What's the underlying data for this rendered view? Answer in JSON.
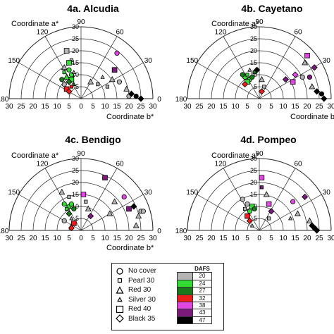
{
  "panels": [
    {
      "title": "4a. Alcudia",
      "a_axis_label": "Coordinate a*",
      "b_axis_label": "Coordinate b*",
      "angle_ticks": [
        "180",
        "150",
        "120",
        "90",
        "60",
        "30",
        "0"
      ],
      "b_ticks": [
        "30",
        "25",
        "20",
        "15",
        "10",
        "5",
        "0",
        "5",
        "10",
        "15",
        "20",
        "25",
        "30"
      ],
      "a_ticks": [
        "30",
        "25",
        "20",
        "15",
        "10",
        "5"
      ]
    },
    {
      "title": "4b. Cayetano",
      "a_axis_label": "Coordinate a*",
      "b_axis_label": "Coordinate b*",
      "angle_ticks": [
        "180",
        "150",
        "120",
        "90",
        "60",
        "30",
        "0"
      ],
      "b_ticks": [
        "30",
        "25",
        "20",
        "15",
        "10",
        "5",
        "0",
        "5",
        "10",
        "15",
        "20",
        "25",
        "30"
      ],
      "a_ticks": [
        "30",
        "25",
        "20",
        "15",
        "10",
        "5"
      ]
    },
    {
      "title": "4c. Bendigo",
      "a_axis_label": "Coordinate a*",
      "b_axis_label": "Coordinate b*",
      "angle_ticks": [
        "180",
        "150",
        "120",
        "90",
        "60",
        "30",
        "0"
      ],
      "b_ticks": [
        "30",
        "25",
        "20",
        "15",
        "10",
        "5",
        "0",
        "5",
        "10",
        "15",
        "20",
        "25",
        "30"
      ],
      "a_ticks": [
        "30",
        "25",
        "20",
        "15",
        "10",
        "5"
      ]
    },
    {
      "title": "4d. Pompeo",
      "a_axis_label": "Coordinate a*",
      "b_axis_label": "Coordinate b*",
      "angle_ticks": [
        "180",
        "150",
        "120",
        "90",
        "60",
        "30",
        "0"
      ],
      "b_ticks": [
        "30",
        "25",
        "20",
        "15",
        "10",
        "5",
        "0",
        "5",
        "10",
        "15",
        "20",
        "25",
        "30"
      ],
      "a_ticks": [
        "30",
        "25",
        "20",
        "15",
        "10",
        "5"
      ]
    }
  ],
  "legend": {
    "treatments": [
      {
        "label": "No cover",
        "marker": "circle"
      },
      {
        "label": "Pearl 30",
        "marker": "small-square"
      },
      {
        "label": "Red 30",
        "marker": "triangle"
      },
      {
        "label": "Silver 30",
        "marker": "small-triangle"
      },
      {
        "label": "Red 40",
        "marker": "square"
      },
      {
        "label": "Black 35",
        "marker": "diamond"
      }
    ],
    "dafs_header": "DAFS",
    "dafs": [
      {
        "value": "20",
        "color": "#b4b4b4"
      },
      {
        "value": "24",
        "color": "#33dd33"
      },
      {
        "value": "27",
        "color": "#1a7a1a"
      },
      {
        "value": "32",
        "color": "#ee1c1c"
      },
      {
        "value": "38",
        "color": "#e046e0"
      },
      {
        "value": "43",
        "color": "#7a1a7a"
      },
      {
        "value": "47",
        "color": "#000000"
      }
    ]
  },
  "chart_data": [
    {
      "type": "scatter",
      "title": "4a. Alcudia",
      "coordinates": "polar hue-angle plot (x: Coordinate b*, y: Coordinate a*)",
      "xlabel": "Coordinate b*",
      "ylabel": "Coordinate a*",
      "xlim": [
        -30,
        30
      ],
      "ylim": [
        0,
        30
      ],
      "grid": true,
      "points": [
        {
          "b": -6,
          "a": 20,
          "marker": "square",
          "dafs": "20"
        },
        {
          "b": -4,
          "a": 16,
          "marker": "small-square",
          "dafs": "20"
        },
        {
          "b": -7,
          "a": 13,
          "marker": "triangle",
          "dafs": "20"
        },
        {
          "b": -5,
          "a": 15,
          "marker": "square",
          "dafs": "24"
        },
        {
          "b": -5,
          "a": 12,
          "marker": "circle",
          "dafs": "24"
        },
        {
          "b": -7,
          "a": 11,
          "marker": "small-square",
          "dafs": "24"
        },
        {
          "b": -4,
          "a": 10,
          "marker": "circle",
          "dafs": "24"
        },
        {
          "b": -6,
          "a": 9,
          "marker": "triangle",
          "dafs": "24"
        },
        {
          "b": -4,
          "a": 8,
          "marker": "square",
          "dafs": "24"
        },
        {
          "b": -8,
          "a": 8,
          "marker": "circle",
          "dafs": "27"
        },
        {
          "b": -5,
          "a": 7,
          "marker": "diamond",
          "dafs": "27"
        },
        {
          "b": -3,
          "a": 6,
          "marker": "small-triangle",
          "dafs": "27"
        },
        {
          "b": -6,
          "a": 4,
          "marker": "square",
          "dafs": "32"
        },
        {
          "b": -4,
          "a": 5,
          "marker": "small-square",
          "dafs": "32"
        },
        {
          "b": -5,
          "a": 3,
          "marker": "diamond",
          "dafs": "32"
        },
        {
          "b": -7,
          "a": 6,
          "marker": "circle",
          "dafs": "20"
        },
        {
          "b": -3,
          "a": 11,
          "marker": "small-triangle",
          "dafs": "20"
        },
        {
          "b": 4,
          "a": 7,
          "marker": "triangle",
          "dafs": "20"
        },
        {
          "b": 7,
          "a": 6,
          "marker": "small-square",
          "dafs": "20"
        },
        {
          "b": 9,
          "a": 9,
          "marker": "small-triangle",
          "dafs": "20"
        },
        {
          "b": 11,
          "a": 5,
          "marker": "small-square",
          "dafs": "20"
        },
        {
          "b": 13,
          "a": 8,
          "marker": "triangle",
          "dafs": "20"
        },
        {
          "b": 14,
          "a": 12,
          "marker": "square",
          "dafs": "43"
        },
        {
          "b": 15,
          "a": 19,
          "marker": "circle",
          "dafs": "38"
        },
        {
          "b": 16,
          "a": 7,
          "marker": "circle",
          "dafs": "20"
        },
        {
          "b": 19,
          "a": 4,
          "marker": "triangle",
          "dafs": "20"
        },
        {
          "b": 20,
          "a": 1,
          "marker": "circle",
          "dafs": "20"
        },
        {
          "b": 21,
          "a": 2,
          "marker": "diamond",
          "dafs": "47"
        },
        {
          "b": 23,
          "a": 1,
          "marker": "circle",
          "dafs": "47"
        },
        {
          "b": 25,
          "a": 0,
          "marker": "diamond",
          "dafs": "47"
        }
      ]
    },
    {
      "type": "scatter",
      "title": "4b. Cayetano",
      "coordinates": "polar hue-angle plot (x: Coordinate b*, y: Coordinate a*)",
      "xlabel": "Coordinate b*",
      "ylabel": "Coordinate a*",
      "xlim": [
        -30,
        30
      ],
      "ylim": [
        0,
        30
      ],
      "grid": true,
      "points": [
        {
          "b": -6,
          "a": 9,
          "marker": "circle",
          "dafs": "24"
        },
        {
          "b": -4,
          "a": 8,
          "marker": "circle",
          "dafs": "24"
        },
        {
          "b": -5,
          "a": 10,
          "marker": "small-square",
          "dafs": "24"
        },
        {
          "b": -7,
          "a": 10,
          "marker": "circle",
          "dafs": "27"
        },
        {
          "b": -3,
          "a": 9,
          "marker": "circle",
          "dafs": "27"
        },
        {
          "b": -5,
          "a": 7,
          "marker": "square",
          "dafs": "24"
        },
        {
          "b": -2,
          "a": 11,
          "marker": "small-square",
          "dafs": "27"
        },
        {
          "b": -1,
          "a": 12,
          "marker": "diamond",
          "dafs": "47"
        },
        {
          "b": -4,
          "a": 12,
          "marker": "small-triangle",
          "dafs": "20"
        },
        {
          "b": -6,
          "a": 6,
          "marker": "diamond",
          "dafs": "32"
        },
        {
          "b": 1,
          "a": 8,
          "marker": "triangle",
          "dafs": "20"
        },
        {
          "b": 2,
          "a": 5,
          "marker": "small-square",
          "dafs": "20"
        },
        {
          "b": 1,
          "a": 3,
          "marker": "diamond",
          "dafs": "32"
        },
        {
          "b": 11,
          "a": 8,
          "marker": "diamond",
          "dafs": "43"
        },
        {
          "b": 14,
          "a": 7,
          "marker": "square",
          "dafs": "38"
        },
        {
          "b": 15,
          "a": 10,
          "marker": "diamond",
          "dafs": "38"
        },
        {
          "b": 18,
          "a": 9,
          "marker": "circle",
          "dafs": "20"
        },
        {
          "b": 21,
          "a": 9,
          "marker": "circle",
          "dafs": "43"
        },
        {
          "b": 19,
          "a": 15,
          "marker": "triangle",
          "dafs": "20"
        },
        {
          "b": 23,
          "a": 13,
          "marker": "diamond",
          "dafs": "43"
        },
        {
          "b": 20,
          "a": 18,
          "marker": "square",
          "dafs": "38"
        },
        {
          "b": 22,
          "a": 5,
          "marker": "triangle",
          "dafs": "20"
        },
        {
          "b": 24,
          "a": 3,
          "marker": "diamond",
          "dafs": "47"
        },
        {
          "b": 26,
          "a": 2,
          "marker": "circle",
          "dafs": "47"
        },
        {
          "b": 27,
          "a": 0,
          "marker": "diamond",
          "dafs": "47"
        }
      ]
    },
    {
      "type": "scatter",
      "title": "4c. Bendigo",
      "coordinates": "polar hue-angle plot (x: Coordinate b*, y: Coordinate a*)",
      "xlabel": "Coordinate b*",
      "ylabel": "Coordinate a*",
      "xlim": [
        -30,
        30
      ],
      "ylim": [
        0,
        30
      ],
      "grid": true,
      "points": [
        {
          "b": -8,
          "a": 16,
          "marker": "triangle",
          "dafs": "20"
        },
        {
          "b": -5,
          "a": 14,
          "marker": "small-square",
          "dafs": "20"
        },
        {
          "b": -7,
          "a": 11,
          "marker": "circle",
          "dafs": "24"
        },
        {
          "b": -5,
          "a": 10,
          "marker": "circle",
          "dafs": "24"
        },
        {
          "b": -4,
          "a": 11,
          "marker": "circle",
          "dafs": "24"
        },
        {
          "b": -6,
          "a": 9,
          "marker": "small-square",
          "dafs": "24"
        },
        {
          "b": -3,
          "a": 9,
          "marker": "circle",
          "dafs": "27"
        },
        {
          "b": -5,
          "a": 7,
          "marker": "diamond",
          "dafs": "27"
        },
        {
          "b": -4,
          "a": 5,
          "marker": "small-triangle",
          "dafs": "20"
        },
        {
          "b": -7,
          "a": 4,
          "marker": "circle",
          "dafs": "20"
        },
        {
          "b": -3,
          "a": 3,
          "marker": "square",
          "dafs": "32"
        },
        {
          "b": -4,
          "a": 1,
          "marker": "diamond",
          "dafs": "32"
        },
        {
          "b": 1,
          "a": 15,
          "marker": "square",
          "dafs": "38"
        },
        {
          "b": 2,
          "a": 12,
          "marker": "small-square",
          "dafs": "20"
        },
        {
          "b": 3,
          "a": 9,
          "marker": "triangle",
          "dafs": "20"
        },
        {
          "b": 4,
          "a": 6,
          "marker": "diamond",
          "dafs": "43"
        },
        {
          "b": 10,
          "a": 22,
          "marker": "square",
          "dafs": "43"
        },
        {
          "b": 12,
          "a": 7,
          "marker": "triangle",
          "dafs": "20"
        },
        {
          "b": 14,
          "a": 12,
          "marker": "triangle",
          "dafs": "20"
        },
        {
          "b": 18,
          "a": 14,
          "marker": "circle",
          "dafs": "38"
        },
        {
          "b": 20,
          "a": 9,
          "marker": "square",
          "dafs": "43"
        },
        {
          "b": 22,
          "a": 10,
          "marker": "diamond",
          "dafs": "47"
        },
        {
          "b": 24,
          "a": 6,
          "marker": "triangle",
          "dafs": "20"
        },
        {
          "b": 25,
          "a": 8,
          "marker": "circle",
          "dafs": "20"
        },
        {
          "b": 26,
          "a": 8,
          "marker": "circle",
          "dafs": "20"
        },
        {
          "b": 23,
          "a": 2,
          "marker": "triangle",
          "dafs": "20"
        }
      ]
    },
    {
      "type": "scatter",
      "title": "4d. Pompeo",
      "coordinates": "polar hue-angle plot (x: Coordinate b*, y: Coordinate a*)",
      "xlabel": "Coordinate b*",
      "ylabel": "Coordinate a*",
      "xlim": [
        -30,
        30
      ],
      "ylim": [
        0,
        30
      ],
      "grid": true,
      "points": [
        {
          "b": -7,
          "a": 13,
          "marker": "circle",
          "dafs": "20"
        },
        {
          "b": -5,
          "a": 11,
          "marker": "circle",
          "dafs": "20"
        },
        {
          "b": -6,
          "a": 9,
          "marker": "small-square",
          "dafs": "20"
        },
        {
          "b": -3,
          "a": 10,
          "marker": "square",
          "dafs": "24"
        },
        {
          "b": -4,
          "a": 8,
          "marker": "circle",
          "dafs": "24"
        },
        {
          "b": -2,
          "a": 9,
          "marker": "circle",
          "dafs": "27"
        },
        {
          "b": -5,
          "a": 6,
          "marker": "square",
          "dafs": "32"
        },
        {
          "b": -4,
          "a": 4,
          "marker": "diamond",
          "dafs": "32"
        },
        {
          "b": -3,
          "a": 2,
          "marker": "small-triangle",
          "dafs": "20"
        },
        {
          "b": 1,
          "a": 22,
          "marker": "square",
          "dafs": "38"
        },
        {
          "b": 1,
          "a": 18,
          "marker": "small-square",
          "dafs": "43"
        },
        {
          "b": 3,
          "a": 15,
          "marker": "triangle",
          "dafs": "20"
        },
        {
          "b": 4,
          "a": 11,
          "marker": "square",
          "dafs": "38"
        },
        {
          "b": 5,
          "a": 8,
          "marker": "diamond",
          "dafs": "43"
        },
        {
          "b": 4,
          "a": 5,
          "marker": "small-square",
          "dafs": "20"
        },
        {
          "b": 14,
          "a": 12,
          "marker": "circle",
          "dafs": "38"
        },
        {
          "b": 13,
          "a": 5,
          "marker": "small-triangle",
          "dafs": "20"
        },
        {
          "b": 16,
          "a": 7,
          "marker": "triangle",
          "dafs": "20"
        },
        {
          "b": 19,
          "a": 14,
          "marker": "diamond",
          "dafs": "43"
        },
        {
          "b": 21,
          "a": 4,
          "marker": "triangle",
          "dafs": "20"
        },
        {
          "b": 22,
          "a": 2,
          "marker": "diamond",
          "dafs": "47"
        },
        {
          "b": 23,
          "a": 1,
          "marker": "circle",
          "dafs": "47"
        },
        {
          "b": 24,
          "a": 0,
          "marker": "diamond",
          "dafs": "47"
        }
      ]
    }
  ]
}
